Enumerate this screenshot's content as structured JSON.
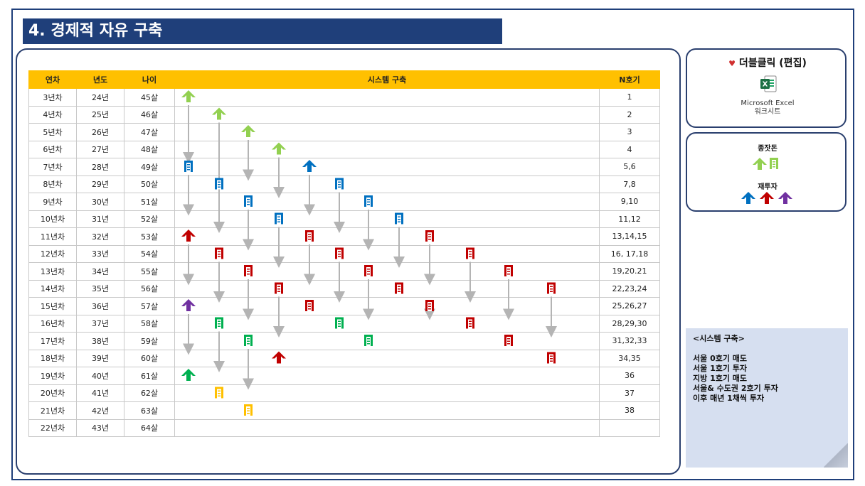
{
  "title": "4. 경제적 자유 구축",
  "table": {
    "headers": [
      "연차",
      "년도",
      "나이",
      "시스템 구축",
      "N호기"
    ],
    "rows": [
      [
        "3년차",
        "24년",
        "45살",
        "1"
      ],
      [
        "4년차",
        "25년",
        "46살",
        "2"
      ],
      [
        "5년차",
        "26년",
        "47살",
        "3"
      ],
      [
        "6년차",
        "27년",
        "48살",
        "4"
      ],
      [
        "7년차",
        "28년",
        "49살",
        "5,6"
      ],
      [
        "8년차",
        "29년",
        "50살",
        "7,8"
      ],
      [
        "9년차",
        "30년",
        "51살",
        "9,10"
      ],
      [
        "10년차",
        "31년",
        "52살",
        "11,12"
      ],
      [
        "11년차",
        "32년",
        "53살",
        "13,14,15"
      ],
      [
        "12년차",
        "33년",
        "54살",
        "16, 17,18"
      ],
      [
        "13년차",
        "34년",
        "55살",
        "19,20.21"
      ],
      [
        "14년차",
        "35년",
        "56살",
        "22,23,24"
      ],
      [
        "15년차",
        "36년",
        "57살",
        "25,26,27"
      ],
      [
        "16년차",
        "37년",
        "58살",
        "28,29,30"
      ],
      [
        "17년차",
        "38년",
        "59살",
        "31,32,33"
      ],
      [
        "18년차",
        "39년",
        "60살",
        "34,35"
      ],
      [
        "19년차",
        "40년",
        "61살",
        "36"
      ],
      [
        "20년차",
        "41년",
        "62살",
        "37"
      ],
      [
        "21년차",
        "42년",
        "63살",
        "38"
      ],
      [
        "22년차",
        "43년",
        "64살",
        ""
      ]
    ]
  },
  "excel_box": {
    "heart": "♥",
    "label": "더블클릭 (편집)",
    "icon": "excel-icon",
    "caption_line1": "Microsoft Excel",
    "caption_line2": "워크시트"
  },
  "legend": {
    "seed_label": "종잣돈",
    "reinvest_label": "재투자"
  },
  "note": {
    "title": "<시스템 구축>",
    "lines": [
      "서울 0호기 매도",
      "서울 1호기 투자",
      "지방 1호기 매도",
      "서울& 수도권 2호기 투자",
      "이후 매년 1채씩 투자"
    ]
  },
  "colors": {
    "light_green": "#92d050",
    "blue": "#0070c0",
    "red": "#c00000",
    "purple": "#7030a0",
    "green": "#00b050",
    "yellow": "#ffc000",
    "arrow": "#b4b4b4",
    "title_bg": "#1f3f7a"
  },
  "diagram": {
    "icons": [
      {
        "row": 0,
        "col": 0,
        "shape": "house",
        "color": "light_green"
      },
      {
        "row": 1,
        "col": 1,
        "shape": "house",
        "color": "light_green"
      },
      {
        "row": 2,
        "col": 2,
        "shape": "house",
        "color": "light_green"
      },
      {
        "row": 3,
        "col": 3,
        "shape": "house",
        "color": "light_green"
      },
      {
        "row": 4,
        "col": 0,
        "shape": "building",
        "color": "blue"
      },
      {
        "row": 4,
        "col": 4,
        "shape": "house",
        "color": "blue"
      },
      {
        "row": 5,
        "col": 1,
        "shape": "building",
        "color": "blue"
      },
      {
        "row": 5,
        "col": 5,
        "shape": "building",
        "color": "blue"
      },
      {
        "row": 6,
        "col": 2,
        "shape": "building",
        "color": "blue"
      },
      {
        "row": 6,
        "col": 6,
        "shape": "building",
        "color": "blue"
      },
      {
        "row": 7,
        "col": 3,
        "shape": "building",
        "color": "blue"
      },
      {
        "row": 7,
        "col": 7,
        "shape": "building",
        "color": "blue"
      },
      {
        "row": 8,
        "col": 0,
        "shape": "house",
        "color": "red"
      },
      {
        "row": 8,
        "col": 4,
        "shape": "building",
        "color": "red"
      },
      {
        "row": 8,
        "col": 8,
        "shape": "building",
        "color": "red"
      },
      {
        "row": 9,
        "col": 1,
        "shape": "building",
        "color": "red"
      },
      {
        "row": 9,
        "col": 5,
        "shape": "building",
        "color": "red"
      },
      {
        "row": 9,
        "col": 9,
        "shape": "building",
        "color": "red"
      },
      {
        "row": 10,
        "col": 2,
        "shape": "building",
        "color": "red"
      },
      {
        "row": 10,
        "col": 6,
        "shape": "building",
        "color": "red"
      },
      {
        "row": 10,
        "col": 10,
        "shape": "building",
        "color": "red"
      },
      {
        "row": 11,
        "col": 3,
        "shape": "building",
        "color": "red"
      },
      {
        "row": 11,
        "col": 7,
        "shape": "building",
        "color": "red"
      },
      {
        "row": 11,
        "col": 11,
        "shape": "building",
        "color": "red"
      },
      {
        "row": 12,
        "col": 0,
        "shape": "house",
        "color": "purple"
      },
      {
        "row": 12,
        "col": 4,
        "shape": "building",
        "color": "red"
      },
      {
        "row": 12,
        "col": 8,
        "shape": "building",
        "color": "red"
      },
      {
        "row": 13,
        "col": 1,
        "shape": "building",
        "color": "green"
      },
      {
        "row": 13,
        "col": 5,
        "shape": "building",
        "color": "green"
      },
      {
        "row": 13,
        "col": 9,
        "shape": "building",
        "color": "red"
      },
      {
        "row": 14,
        "col": 2,
        "shape": "building",
        "color": "green"
      },
      {
        "row": 14,
        "col": 6,
        "shape": "building",
        "color": "green"
      },
      {
        "row": 14,
        "col": 10,
        "shape": "building",
        "color": "red"
      },
      {
        "row": 15,
        "col": 3,
        "shape": "house",
        "color": "red"
      },
      {
        "row": 15,
        "col": 11,
        "shape": "building",
        "color": "red"
      },
      {
        "row": 16,
        "col": 0,
        "shape": "house",
        "color": "green"
      },
      {
        "row": 17,
        "col": 1,
        "shape": "building",
        "color": "yellow"
      },
      {
        "row": 18,
        "col": 2,
        "shape": "building",
        "color": "yellow"
      }
    ],
    "arrows": [
      {
        "col": 0,
        "from": 0,
        "to": 4
      },
      {
        "col": 0,
        "from": 4,
        "to": 7
      },
      {
        "col": 0,
        "from": 8,
        "to": 11
      },
      {
        "col": 0,
        "from": 12,
        "to": 15
      },
      {
        "col": 1,
        "from": 1,
        "to": 8
      },
      {
        "col": 1,
        "from": 9,
        "to": 12
      },
      {
        "col": 1,
        "from": 13,
        "to": 16
      },
      {
        "col": 2,
        "from": 2,
        "to": 5
      },
      {
        "col": 2,
        "from": 6,
        "to": 9
      },
      {
        "col": 2,
        "from": 10,
        "to": 13
      },
      {
        "col": 2,
        "from": 14,
        "to": 17
      },
      {
        "col": 3,
        "from": 3,
        "to": 6
      },
      {
        "col": 3,
        "from": 7,
        "to": 10
      },
      {
        "col": 3,
        "from": 11,
        "to": 14
      },
      {
        "col": 4,
        "from": 4,
        "to": 7
      },
      {
        "col": 4,
        "from": 8,
        "to": 11
      },
      {
        "col": 5,
        "from": 5,
        "to": 8
      },
      {
        "col": 5,
        "from": 9,
        "to": 12
      },
      {
        "col": 6,
        "from": 6,
        "to": 9
      },
      {
        "col": 6,
        "from": 10,
        "to": 13
      },
      {
        "col": 7,
        "from": 7,
        "to": 10
      },
      {
        "col": 8,
        "from": 8,
        "to": 11
      },
      {
        "col": 8,
        "from": 12,
        "to": 13
      },
      {
        "col": 9,
        "from": 9,
        "to": 12
      },
      {
        "col": 10,
        "from": 10,
        "to": 13
      },
      {
        "col": 11,
        "from": 11,
        "to": 14
      }
    ]
  }
}
